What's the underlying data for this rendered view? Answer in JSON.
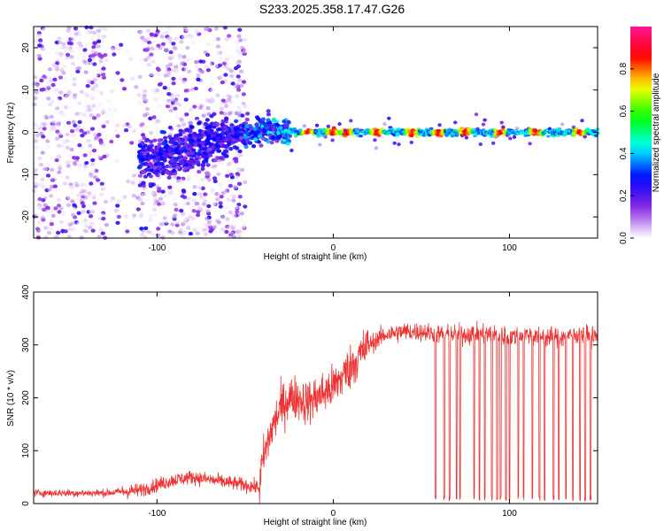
{
  "title": "S233.2025.358.17.47.G26",
  "chart_data": [
    {
      "type": "heatmap",
      "title": "S233.2025.358.17.47.G26",
      "xlabel": "Height of straight line (km)",
      "ylabel": "Frequency (Hz)",
      "xlim": [
        -170,
        150
      ],
      "ylim": [
        -25,
        25
      ],
      "xticks": [
        -100,
        0,
        100
      ],
      "xtick_labels": [
        "-100",
        "0",
        "100"
      ],
      "yticks": [
        -20,
        -10,
        0,
        10,
        20
      ],
      "ytick_labels": [
        "-20",
        "-10",
        "0",
        "10",
        "20"
      ],
      "colorbar": {
        "label": "Normalized spectral amplitude",
        "range": [
          0,
          1
        ],
        "ticks": [
          0.0,
          0.2,
          0.4,
          0.6,
          0.8
        ],
        "tick_labels": [
          "0.0",
          "0.2",
          "0.4",
          "0.6",
          "0.8"
        ],
        "colors": [
          "#ffffff",
          "#8a2be2",
          "#0000ff",
          "#00ffff",
          "#00ff00",
          "#ffff00",
          "#ff0000",
          "#ff1493"
        ]
      },
      "description_points": {
        "scatter_region_x": [
          -170,
          -50
        ],
        "transition_region_x": [
          -110,
          -25
        ],
        "trend_x": [
          -110,
          -90,
          -70,
          -50,
          -35,
          -25,
          0,
          150
        ],
        "trend_freq": [
          -7,
          -5,
          -2,
          0,
          1,
          0,
          0,
          0
        ],
        "peak_heights": [
          -14,
          0,
          8,
          25,
          45,
          60,
          75,
          95,
          115,
          140
        ]
      }
    },
    {
      "type": "line",
      "xlabel": "Height of straight line (km)",
      "ylabel": "SNR (10 * v/v)",
      "xlim": [
        -170,
        150
      ],
      "ylim": [
        0,
        400
      ],
      "xticks": [
        -100,
        0,
        100
      ],
      "xtick_labels": [
        "-100",
        "0",
        "100"
      ],
      "yticks": [
        0,
        100,
        200,
        300,
        400
      ],
      "ytick_labels": [
        "0",
        "100",
        "200",
        "300",
        "400"
      ],
      "color": "#ee3333",
      "x": [
        -170,
        -130,
        -110,
        -100,
        -90,
        -80,
        -70,
        -60,
        -50,
        -42,
        -40,
        -35,
        -30,
        -25,
        -20,
        -15,
        -10,
        -5,
        0,
        5,
        10,
        15,
        20,
        25,
        30,
        40,
        50,
        60,
        70,
        80,
        90,
        100,
        110,
        120,
        130,
        140,
        150
      ],
      "y": [
        20,
        20,
        25,
        35,
        45,
        50,
        45,
        40,
        35,
        30,
        80,
        140,
        180,
        200,
        200,
        190,
        200,
        210,
        220,
        240,
        260,
        280,
        300,
        310,
        320,
        325,
        325,
        320,
        320,
        320,
        320,
        315,
        320,
        315,
        315,
        320,
        315
      ],
      "dropouts_x": [
        58,
        63,
        66,
        70,
        72,
        80,
        83,
        86,
        90,
        93,
        95,
        98,
        100,
        105,
        108,
        113,
        117,
        120,
        125,
        128,
        132,
        136,
        140,
        143,
        146
      ]
    }
  ]
}
